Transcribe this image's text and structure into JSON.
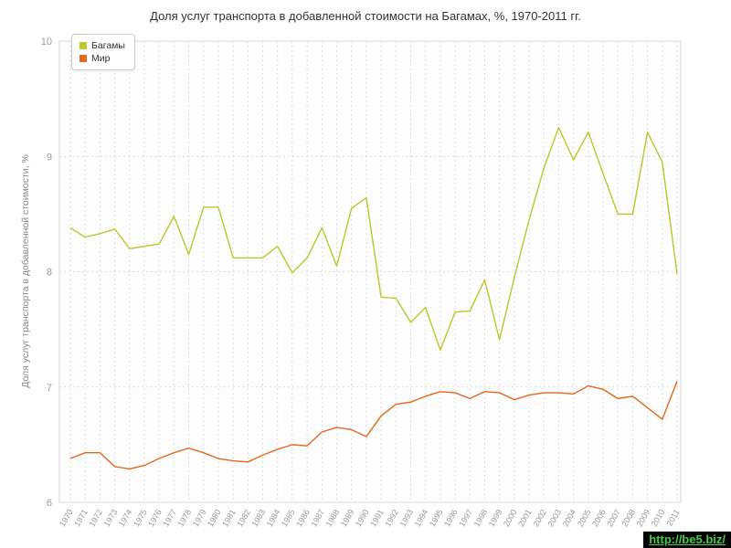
{
  "watermark": {
    "text": "http://be5.biz/",
    "color": "#44cc44",
    "background": "#000000"
  },
  "chart_data": {
    "type": "line",
    "title": "Доля услуг транспорта в добавленной стоимости на Багамах, %, 1970-2011 гг.",
    "ylabel": "Доля услуг транспорта в добавленной стоимости, %",
    "xlabel": "",
    "ylim": [
      6,
      10
    ],
    "y_ticks": [
      6,
      7,
      8,
      9,
      10
    ],
    "grid": true,
    "legend_position": "top-left",
    "grid_color": "#dddddd",
    "tick_color": "#999999",
    "x": [
      1970,
      1971,
      1972,
      1973,
      1974,
      1975,
      1976,
      1977,
      1978,
      1979,
      1980,
      1981,
      1982,
      1983,
      1984,
      1985,
      1986,
      1987,
      1988,
      1989,
      1990,
      1991,
      1992,
      1993,
      1994,
      1995,
      1996,
      1997,
      1998,
      1999,
      2000,
      2001,
      2002,
      2003,
      2004,
      2005,
      2006,
      2007,
      2008,
      2009,
      2010,
      2011
    ],
    "series": [
      {
        "name": "Багамы",
        "color": "#bdc72b",
        "values": [
          8.38,
          8.3,
          8.33,
          8.37,
          8.2,
          8.22,
          8.24,
          8.48,
          8.15,
          8.56,
          8.56,
          8.12,
          8.12,
          8.12,
          8.22,
          7.99,
          8.12,
          8.38,
          8.05,
          8.55,
          8.64,
          7.78,
          7.77,
          7.56,
          7.69,
          7.32,
          7.65,
          7.66,
          7.93,
          7.41,
          7.95,
          8.45,
          8.9,
          9.25,
          8.97,
          9.21,
          8.85,
          8.5,
          8.5,
          9.21,
          8.95,
          7.98
        ]
      },
      {
        "name": "Мир",
        "color": "#e2691d",
        "values": [
          6.38,
          6.43,
          6.43,
          6.31,
          6.29,
          6.32,
          6.38,
          6.43,
          6.47,
          6.43,
          6.38,
          6.36,
          6.35,
          6.41,
          6.46,
          6.5,
          6.49,
          6.61,
          6.65,
          6.63,
          6.57,
          6.75,
          6.85,
          6.87,
          6.92,
          6.96,
          6.95,
          6.9,
          6.96,
          6.95,
          6.89,
          6.93,
          6.95,
          6.95,
          6.94,
          7.01,
          6.98,
          6.9,
          6.92,
          6.82,
          6.72,
          7.05
        ]
      }
    ]
  }
}
